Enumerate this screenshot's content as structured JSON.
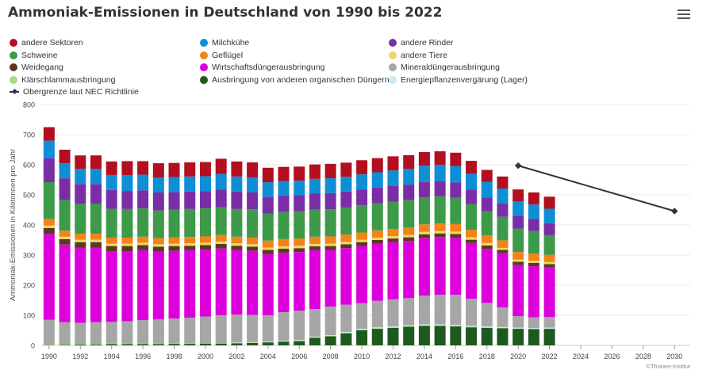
{
  "header": {
    "title": "Ammoniak-Emissionen in Deutschland von 1990 bis 2022",
    "menu_icon": "hamburger-menu-icon"
  },
  "credit": "©Thünen-Institut",
  "chart_data": {
    "type": "bar",
    "stacked": true,
    "ylabel": "Ammoniak-Emissionen in Kilotonnen pro Jahr",
    "xlabel": "",
    "ylim": [
      0,
      800
    ],
    "yticks": [
      0,
      100,
      200,
      300,
      400,
      500,
      600,
      700,
      800
    ],
    "xlim": [
      1989.5,
      2031
    ],
    "xticks": [
      1990,
      1992,
      1994,
      1996,
      1998,
      2000,
      2002,
      2004,
      2006,
      2008,
      2010,
      2012,
      2014,
      2016,
      2018,
      2020,
      2022,
      2024,
      2026,
      2028,
      2030
    ],
    "grid": true,
    "legend_position": "top",
    "years": [
      1990,
      1991,
      1992,
      1993,
      1994,
      1995,
      1996,
      1997,
      1998,
      1999,
      2000,
      2001,
      2002,
      2003,
      2004,
      2005,
      2006,
      2007,
      2008,
      2009,
      2010,
      2011,
      2012,
      2013,
      2014,
      2015,
      2016,
      2017,
      2018,
      2019,
      2020,
      2021,
      2022
    ],
    "series": [
      {
        "name": "Ausbringung von anderen organischen Düngern",
        "color": "#1e5a1e",
        "values": [
          1,
          2,
          3,
          3,
          4,
          4,
          4,
          4,
          5,
          5,
          6,
          6,
          7,
          8,
          10,
          12,
          14,
          25,
          30,
          40,
          50,
          55,
          58,
          62,
          65,
          65,
          63,
          60,
          58,
          57,
          55,
          54,
          55
        ]
      },
      {
        "name": "Klärschlammausbringung",
        "color": "#a8dc7c",
        "values": [
          2,
          2,
          2,
          2,
          2,
          2,
          2,
          2,
          2,
          2,
          2,
          2,
          2,
          2,
          2,
          2,
          2,
          2,
          2,
          2,
          2,
          2,
          2,
          2,
          2,
          2,
          2,
          2,
          2,
          1,
          1,
          1,
          1
        ]
      },
      {
        "name": "Energiepflanzenvergärung (Lager)",
        "color": "#c8e8f8",
        "values": [
          0,
          0,
          0,
          0,
          0,
          0,
          0,
          0,
          0,
          0,
          0,
          0,
          1,
          1,
          1,
          1,
          2,
          2,
          2,
          3,
          3,
          3,
          3,
          3,
          3,
          3,
          3,
          3,
          3,
          3,
          3,
          3,
          3
        ]
      },
      {
        "name": "Mineraldüngerausbringung",
        "color": "#a6a6a6",
        "values": [
          82,
          73,
          70,
          72,
          72,
          74,
          78,
          80,
          82,
          85,
          88,
          92,
          92,
          90,
          87,
          95,
          97,
          92,
          95,
          90,
          85,
          88,
          90,
          90,
          95,
          98,
          100,
          90,
          78,
          65,
          38,
          35,
          35
        ]
      },
      {
        "name": "Wirtschaftsdüngerausbringung",
        "color": "#dd00dd",
        "values": [
          285,
          258,
          250,
          248,
          235,
          233,
          232,
          226,
          225,
          224,
          222,
          222,
          215,
          213,
          203,
          198,
          195,
          195,
          188,
          188,
          190,
          190,
          190,
          190,
          192,
          192,
          190,
          185,
          180,
          180,
          170,
          170,
          165
        ]
      },
      {
        "name": "Weidegang",
        "color": "#5a3a1e",
        "values": [
          20,
          18,
          18,
          18,
          17,
          17,
          17,
          16,
          16,
          15,
          15,
          15,
          14,
          14,
          14,
          13,
          13,
          13,
          13,
          13,
          13,
          12,
          12,
          12,
          12,
          12,
          12,
          11,
          11,
          11,
          11,
          11,
          11
        ]
      },
      {
        "name": "andere Tiere",
        "color": "#f2d56a",
        "values": [
          8,
          8,
          8,
          8,
          8,
          8,
          8,
          8,
          8,
          8,
          8,
          8,
          8,
          8,
          8,
          8,
          8,
          8,
          8,
          8,
          8,
          8,
          8,
          8,
          8,
          8,
          8,
          8,
          8,
          7,
          7,
          7,
          7
        ]
      },
      {
        "name": "Geflügel",
        "color": "#f08418",
        "values": [
          22,
          20,
          20,
          20,
          20,
          20,
          20,
          20,
          21,
          21,
          21,
          22,
          22,
          22,
          23,
          24,
          24,
          24,
          24,
          24,
          24,
          24,
          24,
          25,
          25,
          25,
          25,
          25,
          25,
          25,
          25,
          24,
          24
        ]
      },
      {
        "name": "Schweine",
        "color": "#3c9a48",
        "values": [
          122,
          102,
          100,
          100,
          96,
          95,
          94,
          92,
          92,
          93,
          93,
          92,
          92,
          94,
          90,
          90,
          90,
          90,
          90,
          90,
          90,
          90,
          90,
          90,
          90,
          90,
          88,
          85,
          80,
          78,
          78,
          75,
          65
        ]
      },
      {
        "name": "andere Rinder",
        "color": "#7a2ea6",
        "values": [
          80,
          72,
          65,
          65,
          62,
          60,
          60,
          60,
          58,
          58,
          57,
          58,
          58,
          57,
          56,
          55,
          54,
          54,
          54,
          53,
          53,
          52,
          52,
          52,
          51,
          50,
          50,
          48,
          46,
          44,
          42,
          40,
          40
        ]
      },
      {
        "name": "Milchkühe",
        "color": "#0c8fd6",
        "values": [
          58,
          50,
          50,
          50,
          50,
          52,
          52,
          50,
          50,
          50,
          50,
          52,
          50,
          49,
          48,
          48,
          48,
          48,
          49,
          49,
          50,
          51,
          52,
          52,
          54,
          55,
          55,
          53,
          52,
          50,
          48,
          48,
          48
        ]
      },
      {
        "name": "andere Sektoren",
        "color": "#b30f20",
        "values": [
          45,
          45,
          45,
          45,
          45,
          47,
          45,
          47,
          47,
          47,
          47,
          51,
          50,
          50,
          48,
          47,
          47,
          48,
          48,
          47,
          47,
          47,
          47,
          46,
          45,
          45,
          44,
          43,
          40,
          40,
          40,
          40,
          40
        ]
      }
    ],
    "line_series": {
      "name": "Obergrenze laut NEC Richtlinie",
      "color": "#333333",
      "x": [
        2020,
        2030
      ],
      "y": [
        597,
        446
      ]
    },
    "legend_order": [
      "andere Sektoren",
      "Milchkühe",
      "andere Rinder",
      "Schweine",
      "Geflügel",
      "andere Tiere",
      "Weidegang",
      "Wirtschaftsdüngerausbringung",
      "Mineraldüngerausbringung",
      "Klärschlammausbringung",
      "Ausbringung von anderen organischen Düngern",
      "Energiepflanzenvergärung (Lager)",
      "Obergrenze laut NEC Richtlinie"
    ]
  }
}
